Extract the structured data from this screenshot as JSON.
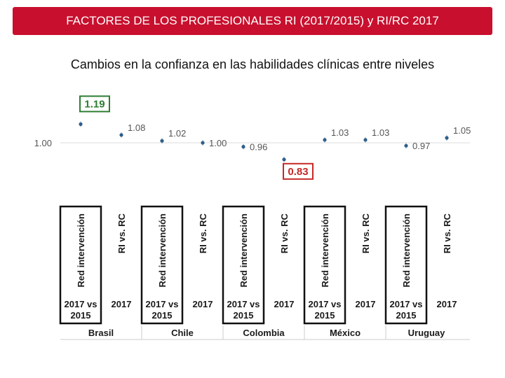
{
  "header": {
    "title": "FACTORES DE LOS PROFESIONALES RI (2017/2015) y RI/RC 2017"
  },
  "subtitle": "Cambios en la confianza en las habilidades clínicas entre niveles",
  "colors": {
    "header_bg": "#c8102e",
    "marker": "#2e5f8a",
    "highlight_high": "#2e7d32",
    "highlight_low": "#c62828"
  },
  "chart_data": {
    "type": "scatter",
    "reference": {
      "label": "1.00",
      "value": 1.0
    },
    "countries": [
      "Brasil",
      "Chile",
      "Colombia",
      "México",
      "Uruguay"
    ],
    "comparisons": [
      {
        "vertical": "Red intervención",
        "bottom": "2017 vs 2015",
        "boxed": true
      },
      {
        "vertical": "RI vs. RC",
        "bottom": "2017",
        "boxed": false
      }
    ],
    "points": [
      {
        "country": "Brasil",
        "comparison": "Red intervención",
        "value": 1.19,
        "label": "1.19",
        "highlight": "high"
      },
      {
        "country": "Brasil",
        "comparison": "RI vs. RC",
        "value": 1.08,
        "label": "1.08"
      },
      {
        "country": "Chile",
        "comparison": "Red intervención",
        "value": 1.02,
        "label": "1.02"
      },
      {
        "country": "Chile",
        "comparison": "RI vs. RC",
        "value": 1.0,
        "label": "1.00"
      },
      {
        "country": "Colombia",
        "comparison": "Red intervención",
        "value": 0.96,
        "label": "0.96"
      },
      {
        "country": "Colombia",
        "comparison": "RI vs. RC",
        "value": 0.83,
        "label": "0.83",
        "highlight": "low"
      },
      {
        "country": "México",
        "comparison": "Red intervención",
        "value": 1.03,
        "label": "1.03"
      },
      {
        "country": "México",
        "comparison": "RI vs. RC",
        "value": 1.03,
        "label": "1.03"
      },
      {
        "country": "Uruguay",
        "comparison": "Red intervención",
        "value": 0.97,
        "label": "0.97"
      },
      {
        "country": "Uruguay",
        "comparison": "RI vs. RC",
        "value": 1.05,
        "label": "1.05"
      }
    ]
  }
}
